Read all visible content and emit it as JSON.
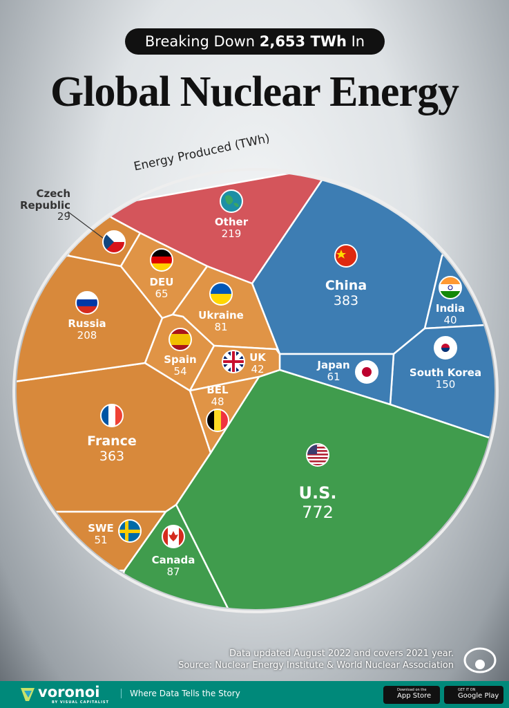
{
  "header": {
    "pill_prefix": "Breaking Down ",
    "pill_bold": "2,653 TWh",
    "pill_suffix": " In",
    "title": "Global Nuclear Energy"
  },
  "chart_data": {
    "type": "voronoi",
    "title": "Global Nuclear Energy",
    "subtitle": "Breaking Down 2,653 TWh In",
    "value_label": "Energy Produced (TWh)",
    "total": 2653,
    "items": [
      {
        "label": "Other",
        "value": 219,
        "color": "#d4555b",
        "flag": "globe"
      },
      {
        "label": "China",
        "value": 383,
        "color": "#3d7db3",
        "flag": "cn"
      },
      {
        "label": "India",
        "value": 40,
        "color": "#3d7db3",
        "flag": "in"
      },
      {
        "label": "South Korea",
        "value": 150,
        "color": "#3d7db3",
        "flag": "kr"
      },
      {
        "label": "Japan",
        "value": 61,
        "color": "#3d7db3",
        "flag": "jp"
      },
      {
        "label": "U.S.",
        "value": 772,
        "color": "#409c4d",
        "flag": "us"
      },
      {
        "label": "Canada",
        "value": 87,
        "color": "#409c4d",
        "flag": "ca"
      },
      {
        "label": "SWE",
        "value": 51,
        "color": "#d8893b",
        "flag": "se"
      },
      {
        "label": "France",
        "value": 363,
        "color": "#d8893b",
        "flag": "fr"
      },
      {
        "label": "Russia",
        "value": 208,
        "color": "#d8893b",
        "flag": "ru"
      },
      {
        "label": "Czech Republic",
        "value": 29,
        "color": "#d8893b",
        "flag": "cz"
      },
      {
        "label": "DEU",
        "value": 65,
        "color": "#e09446",
        "flag": "de"
      },
      {
        "label": "Ukraine",
        "value": 81,
        "color": "#e09446",
        "flag": "ua"
      },
      {
        "label": "Spain",
        "value": 54,
        "color": "#e09446",
        "flag": "es"
      },
      {
        "label": "UK",
        "value": 42,
        "color": "#e09446",
        "flag": "gb"
      },
      {
        "label": "BEL",
        "value": 48,
        "color": "#e09446",
        "flag": "be"
      }
    ]
  },
  "notes": {
    "updated": "Data updated August 2022 and covers 2021 year.",
    "source": "Source: Nuclear Energy Institute & World Nuclear Association"
  },
  "footer": {
    "brand": "voronoi",
    "brand_sub": "BY VISUAL CAPITALIST",
    "tagline": "Where Data Tells the Story",
    "appstore_small": "Download on the",
    "appstore": "App Store",
    "gplay_small": "GET IT ON",
    "gplay": "Google Play"
  }
}
